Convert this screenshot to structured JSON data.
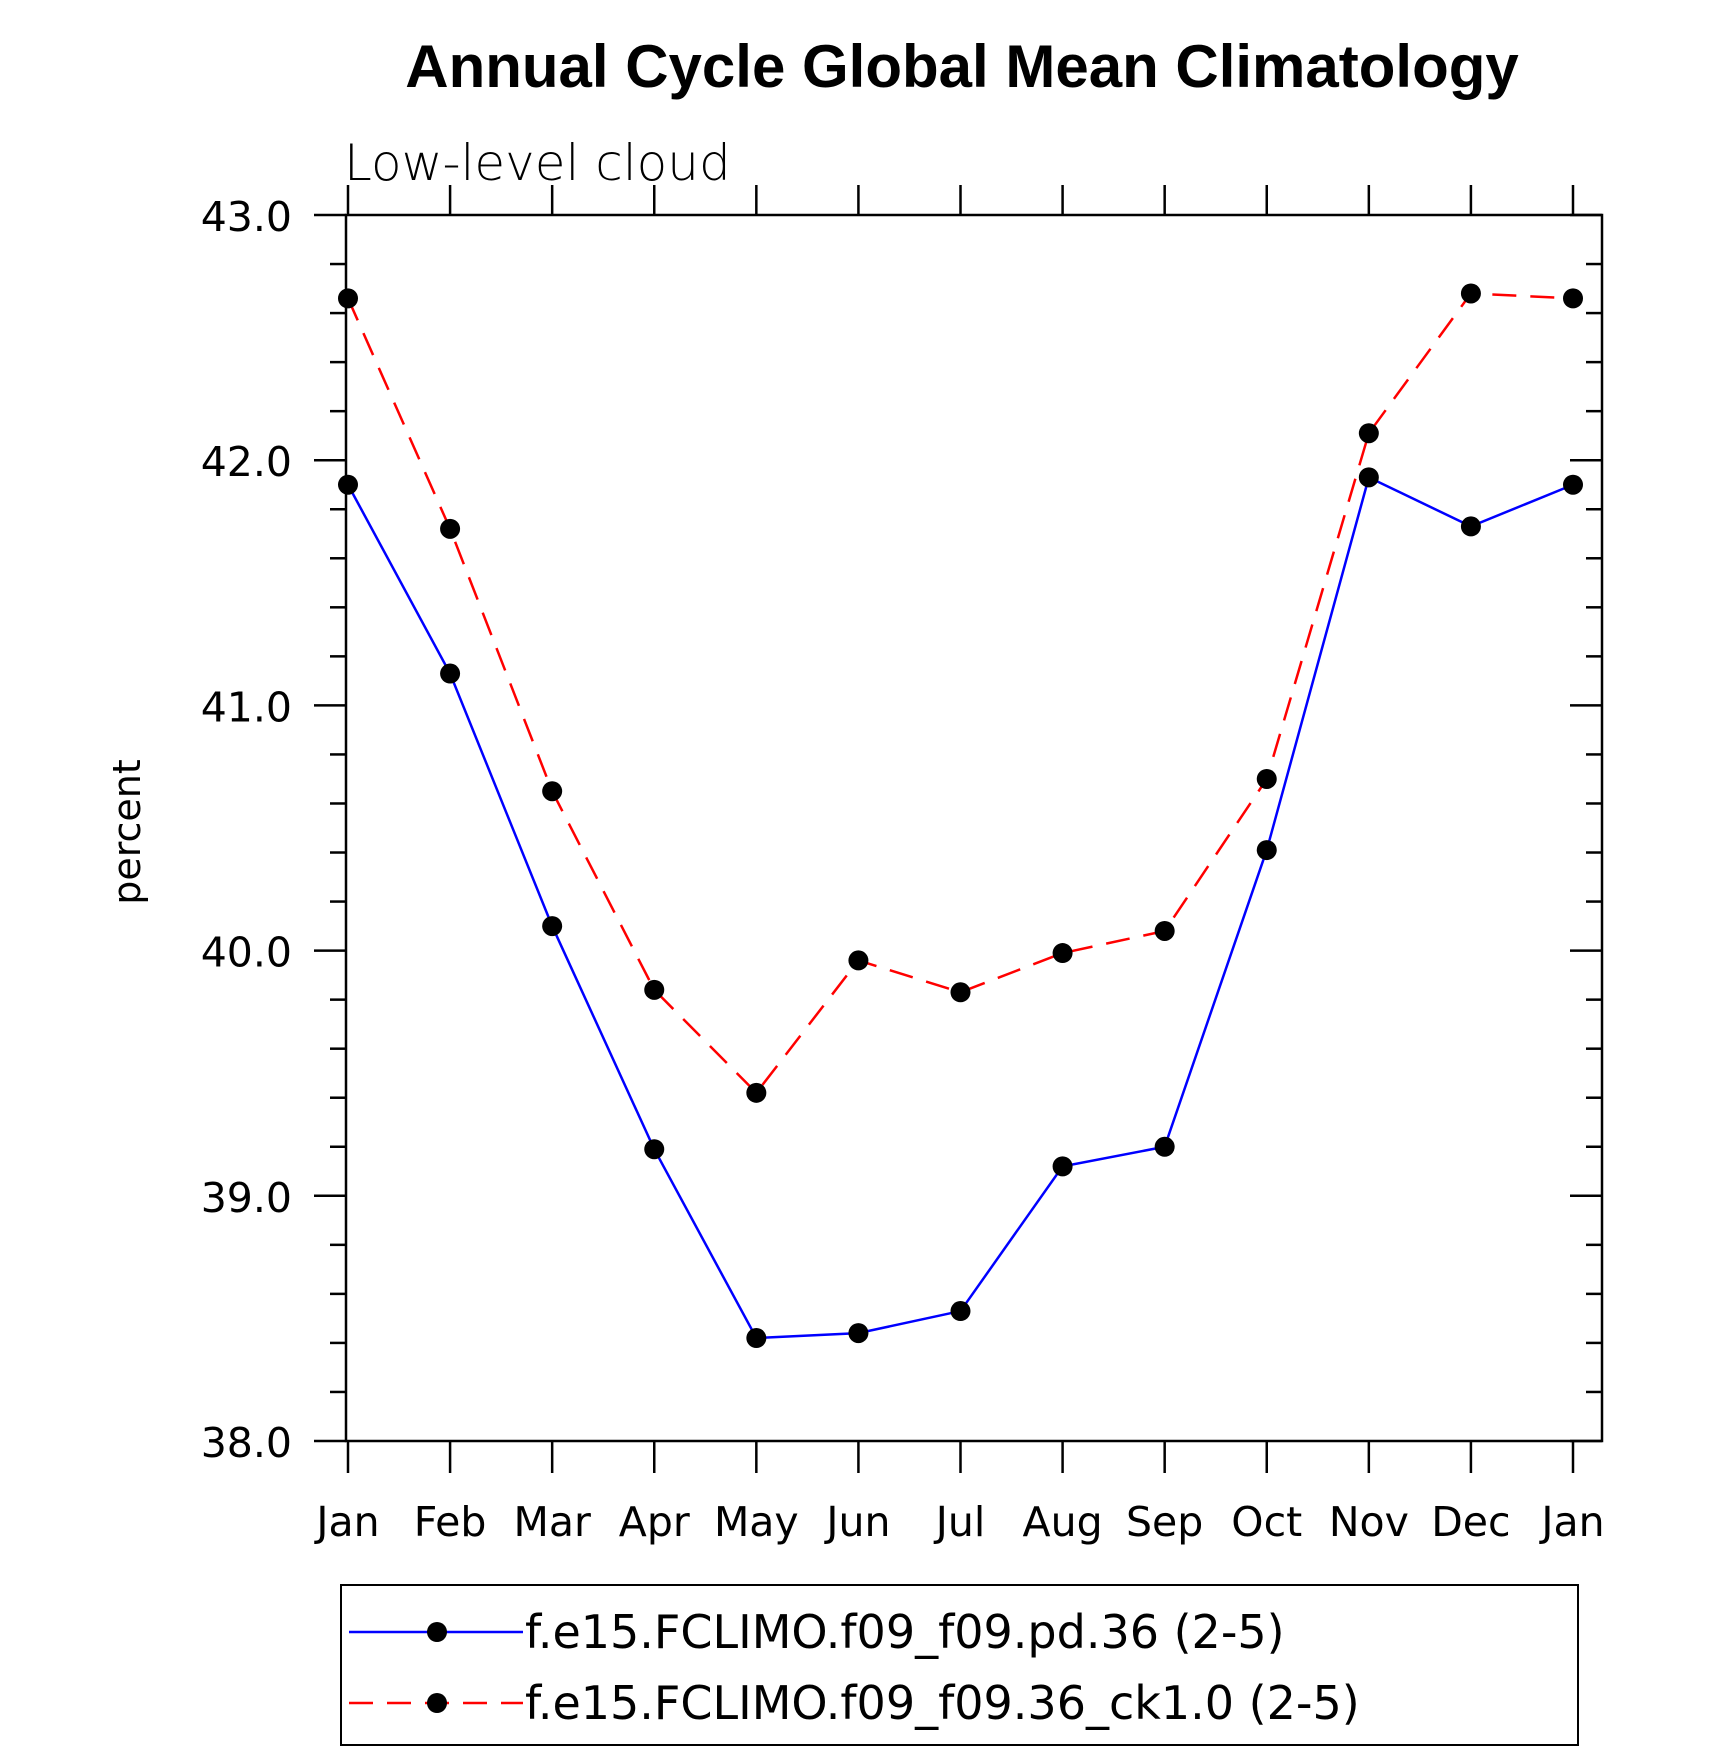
{
  "chart_data": {
    "type": "line",
    "title": "Annual Cycle Global Mean Climatology",
    "subtitle": "Low-level cloud",
    "xlabel": "",
    "ylabel": "percent",
    "categories": [
      "Jan",
      "Feb",
      "Mar",
      "Apr",
      "May",
      "Jun",
      "Jul",
      "Aug",
      "Sep",
      "Oct",
      "Nov",
      "Dec",
      "Jan"
    ],
    "ylim": [
      38.0,
      43.0
    ],
    "yticks": [
      "38.0",
      "39.0",
      "40.0",
      "41.0",
      "42.0",
      "43.0"
    ],
    "grid": false,
    "legend_position": "bottom",
    "series": [
      {
        "name": "f.e15.FCLIMO.f09_f09.pd.36 (2-5)",
        "color": "#0000ff",
        "line_style": "solid",
        "marker": "filled-circle",
        "values": [
          41.9,
          41.13,
          40.1,
          39.19,
          38.42,
          38.44,
          38.53,
          39.12,
          39.2,
          40.41,
          41.93,
          41.73,
          41.9
        ]
      },
      {
        "name": "f.e15.FCLIMO.f09_f09.36_ck1.0 (2-5)",
        "color": "#ff0000",
        "line_style": "dashed",
        "marker": "filled-circle",
        "values": [
          42.66,
          41.72,
          40.65,
          39.84,
          39.42,
          39.96,
          39.83,
          39.99,
          40.08,
          40.7,
          42.11,
          42.68,
          42.66
        ]
      }
    ]
  }
}
